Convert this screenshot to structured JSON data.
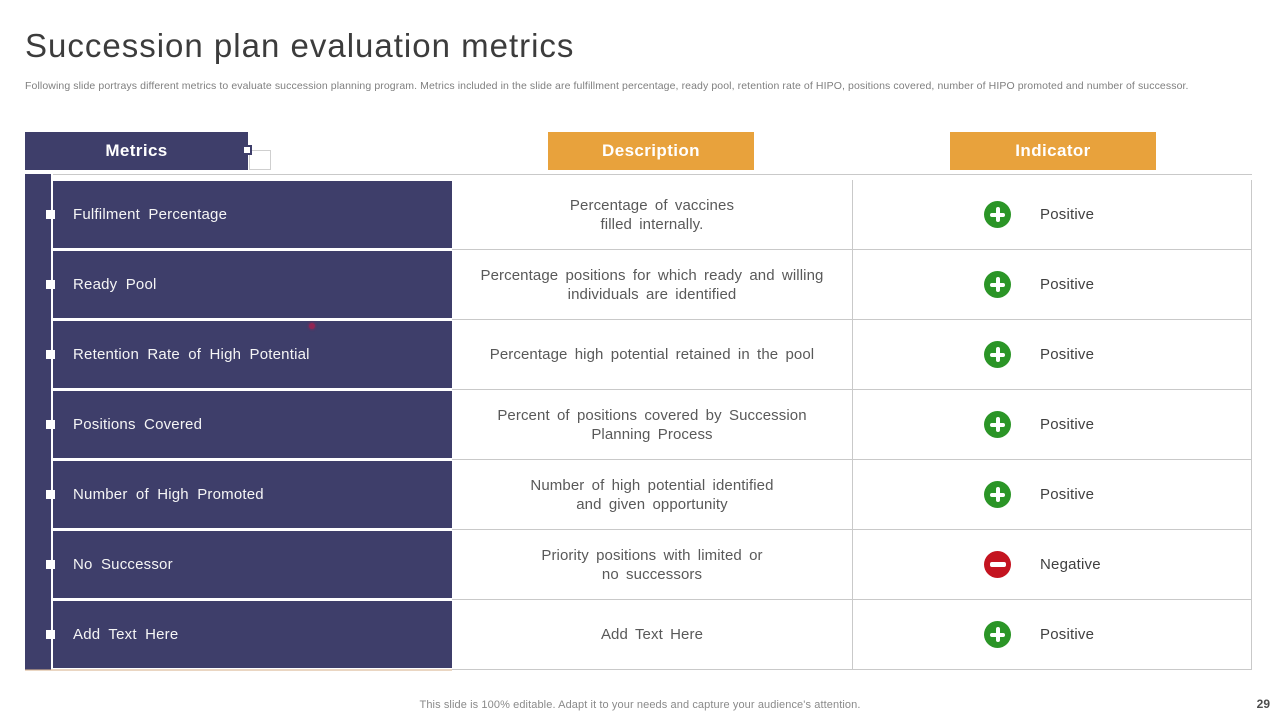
{
  "slide": {
    "title": "Succession plan evaluation metrics",
    "subtitle": "Following slide portrays different metrics to evaluate succession planning program. Metrics included in the slide are fulfillment percentage, ready pool, retention rate of HIPO,  positions covered, number of HIPO promoted and number of successor.",
    "footer_note": "This slide is 100% editable. Adapt it to your needs and capture your audience's attention.",
    "page_number": "29"
  },
  "table": {
    "headers": {
      "metrics": "Metrics",
      "description": "Description",
      "indicator": "Indicator"
    },
    "rows": [
      {
        "metric": "Fulfilment Percentage",
        "description": "Percentage of vaccines\nfilled internally.",
        "indicator": "positive",
        "indicator_label": "Positive"
      },
      {
        "metric": "Ready Pool",
        "description": "Percentage positions for which ready and willing\nindividuals are identified",
        "indicator": "positive",
        "indicator_label": "Positive"
      },
      {
        "metric": "Retention Rate of High Potential",
        "description": "Percentage high potential retained in the pool",
        "indicator": "positive",
        "indicator_label": "Positive"
      },
      {
        "metric": "Positions Covered",
        "description": "Percent of positions covered by Succession\nPlanning Process",
        "indicator": "positive",
        "indicator_label": "Positive"
      },
      {
        "metric": "Number of High Promoted",
        "description": "Number of high potential identified\nand given opportunity",
        "indicator": "positive",
        "indicator_label": "Positive"
      },
      {
        "metric": "No Successor",
        "description": "Priority positions with limited or\nno successors",
        "indicator": "negative",
        "indicator_label": "Negative"
      },
      {
        "metric": "Add Text Here",
        "description": "Add Text Here",
        "indicator": "positive",
        "indicator_label": "Positive"
      }
    ]
  },
  "colors": {
    "navy": "#3E3E6A",
    "orange": "#E8A23C",
    "green": "#2B9527",
    "red": "#C41420"
  }
}
